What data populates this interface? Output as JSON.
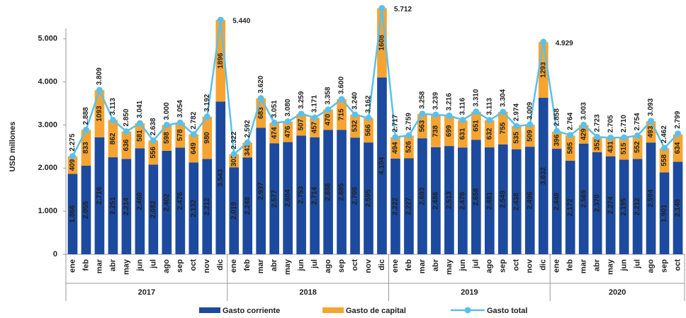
{
  "chart_data": {
    "type": "stacked_bar_line",
    "y_label": "USD millones",
    "categories": [
      "ene",
      "feb",
      "mar",
      "abr",
      "may",
      "jun",
      "jul",
      "ago",
      "sep",
      "oct",
      "nov",
      "dic",
      "ene",
      "feb",
      "mar",
      "abr",
      "may",
      "jun",
      "jul",
      "ago",
      "sep",
      "oct",
      "nov",
      "dic",
      "ene",
      "feb",
      "mar",
      "abr",
      "may",
      "jun",
      "jul",
      "ago",
      "sep",
      "oct",
      "nov",
      "dic",
      "ene",
      "feb",
      "mar",
      "abr",
      "may",
      "jun",
      "jul",
      "ago",
      "sep",
      "oct"
    ],
    "x_groups": [
      "2017",
      "2018",
      "2019",
      "2020"
    ],
    "ylim": [
      0,
      6000
    ],
    "yticks": [
      0,
      {
        "value": 1000,
        "label": "1.000"
      },
      {
        "value": 2000,
        "label": "2.000"
      },
      {
        "value": 3000,
        "label": "3.000"
      },
      {
        "value": 4000,
        "label": "4.000"
      },
      {
        "value": 5000,
        "label": "5.000"
      }
    ],
    "series": [
      {
        "name": "Gasto corriente",
        "kind": "bar",
        "color": "#1c4a9e",
        "values": [
          1866,
          2055,
          2716,
          2251,
          2214,
          2460,
          2082,
          2402,
          2476,
          2132,
          2212,
          3543,
          2019,
          2248,
          2937,
          2577,
          2604,
          2753,
          2714,
          2888,
          2885,
          2708,
          2595,
          4104,
          2222,
          2227,
          2693,
          2486,
          2513,
          2478,
          2658,
          2481,
          2549,
          2438,
          2496,
          3632,
          2448,
          2172,
          2569,
          2370,
          2274,
          2195,
          2212,
          2594,
          1901,
          2148
        ],
        "value_labels": [
          "1.866",
          "2.055",
          "2.716",
          "2.251",
          "2.214",
          "2.460",
          "2.082",
          "2.402",
          "2.476",
          "2.132",
          "2.212",
          "3.543",
          "2.019",
          "2.248",
          "2.937",
          "2.577",
          "2.604",
          "2.753",
          "2.714",
          "2.888",
          "2.885",
          "2.708",
          "2.595",
          "4.104",
          "2.222",
          "2.227",
          "2.693",
          "2.486",
          "2.513",
          "2.478",
          "2.658",
          "2.481",
          "2.549",
          "2.438",
          "2.496",
          "3.632",
          "2.448",
          "2.172",
          "2.569",
          "2.370",
          "2.274",
          "2.195",
          "2.212",
          "2.594",
          "1.901",
          "2.148"
        ]
      },
      {
        "name": "Gasto de capital",
        "kind": "bar",
        "color": "#f6a431",
        "values": [
          409,
          833,
          1093,
          862,
          636,
          581,
          556,
          598,
          578,
          649,
          980,
          1896,
          303,
          343,
          683,
          474,
          476,
          507,
          457,
          470,
          715,
          532,
          566,
          1608,
          494,
          526,
          563,
          738,
          699,
          631,
          651,
          632,
          755,
          535,
          509,
          1293,
          396,
          585,
          429,
          352,
          431,
          515,
          552,
          493,
          558,
          634
        ]
      },
      {
        "name": "Gasto total",
        "kind": "line",
        "color": "#5bc0eb",
        "values": [
          2275,
          2888,
          3809,
          3113,
          2850,
          3041,
          2638,
          3000,
          3054,
          2782,
          3192,
          5440,
          2322,
          2592,
          3620,
          3051,
          3080,
          3259,
          3171,
          3358,
          3600,
          3240,
          3162,
          5712,
          2717,
          2759,
          3258,
          3239,
          3216,
          3116,
          3310,
          3113,
          3304,
          2974,
          3009,
          4929,
          2858,
          2764,
          3003,
          2723,
          2705,
          2710,
          2754,
          3093,
          2462,
          2799
        ],
        "value_labels": [
          "2.275",
          "2.888",
          "3.809",
          "3.113",
          "2.850",
          "3.041",
          "2.638",
          "3.000",
          "3.054",
          "2.782",
          "3.192",
          "5.440",
          "2.322",
          "2.592",
          "3.620",
          "3.051",
          "3.080",
          "3.259",
          "3.171",
          "3.358",
          "3.600",
          "3.240",
          "3.162",
          "5.712",
          "2.717",
          "2.759",
          "3.258",
          "3.239",
          "3.216",
          "3.116",
          "3.310",
          "3.113",
          "3.304",
          "2.974",
          "3.009",
          "4.929",
          "2.858",
          "2.764",
          "3.003",
          "2.723",
          "2.705",
          "2.710",
          "2.754",
          "3.093",
          "2.462",
          "2.799"
        ]
      }
    ]
  }
}
